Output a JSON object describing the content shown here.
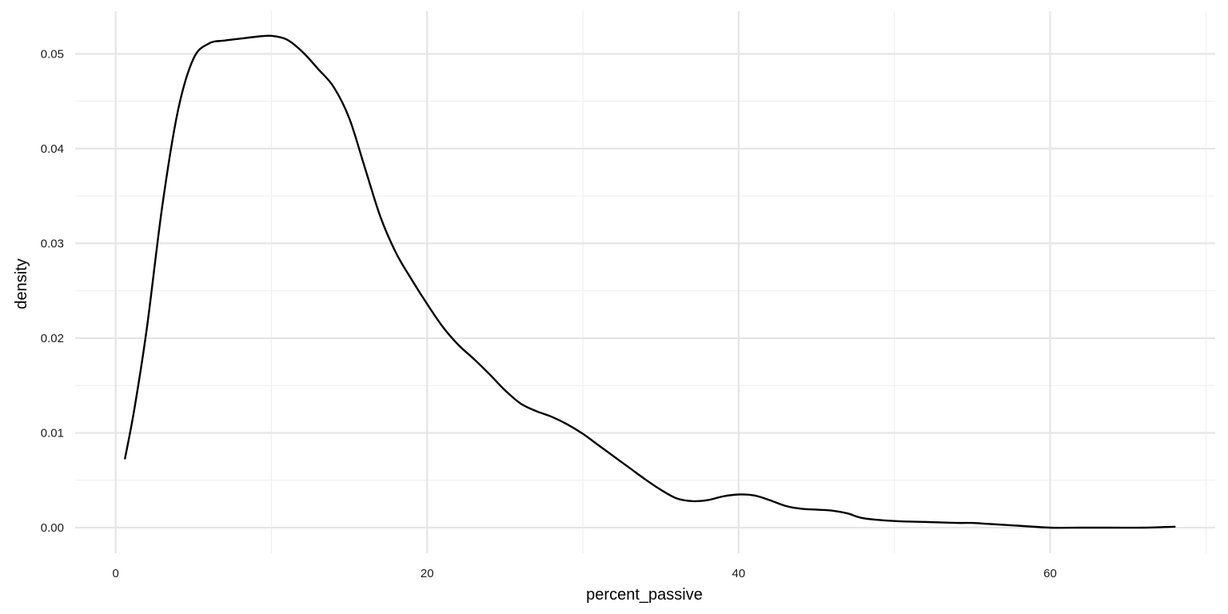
{
  "chart_data": {
    "type": "line",
    "title": "",
    "xlabel": "percent_passive",
    "ylabel": "density",
    "xlim": [
      -2.6,
      70.6
    ],
    "ylim": [
      -0.0027,
      0.0545
    ],
    "x_ticks": [
      0,
      20,
      40,
      60
    ],
    "x_tick_labels": [
      "0",
      "20",
      "40",
      "60"
    ],
    "y_ticks": [
      0.0,
      0.01,
      0.02,
      0.03,
      0.04,
      0.05
    ],
    "y_tick_labels": [
      "0.00",
      "0.01",
      "0.02",
      "0.03",
      "0.04",
      "0.05"
    ],
    "grid": true,
    "legend": "none",
    "line_color": "#000000",
    "series": [
      {
        "x": [
          0.6,
          1.2,
          2.0,
          3.0,
          4.0,
          5.0,
          6.0,
          7.0,
          8.0,
          9.0,
          10.0,
          11.0,
          12.0,
          13.0,
          14.0,
          15.0,
          16.0,
          17.0,
          18.0,
          19.0,
          20.0,
          21.0,
          22.0,
          23.0,
          24.0,
          25.0,
          26.0,
          27.0,
          28.0,
          29.0,
          30.0,
          31.0,
          32.0,
          33.0,
          34.0,
          35.0,
          36.0,
          37.0,
          38.0,
          39.0,
          40.0,
          41.0,
          42.0,
          43.0,
          44.0,
          45.0,
          46.0,
          47.0,
          48.0,
          50.0,
          52.0,
          54.0,
          55.0,
          56.0,
          58.0,
          60.0,
          62.0,
          64.0,
          66.0,
          68.0
        ],
        "y": [
          0.0073,
          0.0125,
          0.021,
          0.034,
          0.044,
          0.0495,
          0.0511,
          0.0514,
          0.0516,
          0.0518,
          0.0519,
          0.0515,
          0.0502,
          0.0484,
          0.0465,
          0.0432,
          0.038,
          0.0328,
          0.029,
          0.0262,
          0.0236,
          0.0212,
          0.0193,
          0.0178,
          0.0162,
          0.0145,
          0.0131,
          0.0123,
          0.0117,
          0.0109,
          0.0099,
          0.0087,
          0.0075,
          0.0063,
          0.0051,
          0.004,
          0.0031,
          0.0028,
          0.0029,
          0.0033,
          0.0035,
          0.0034,
          0.0029,
          0.0023,
          0.002,
          0.0019,
          0.0018,
          0.0015,
          0.001,
          0.0007,
          0.0006,
          0.0005,
          0.0005,
          0.0004,
          0.0002,
          0.0,
          0.0,
          0.0,
          0.0,
          0.0001
        ]
      }
    ]
  }
}
